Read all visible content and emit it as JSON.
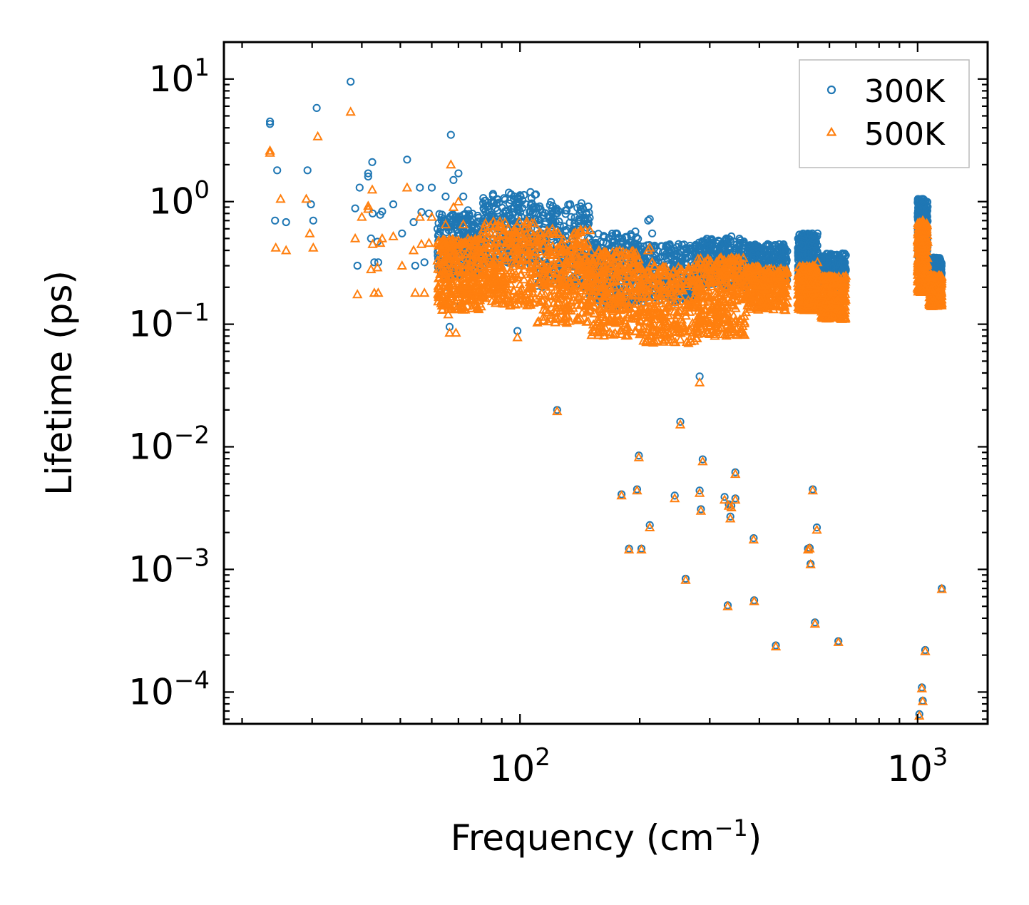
{
  "chart_data": {
    "type": "scatter",
    "title": "",
    "xlabel": "Frequency (cm",
    "xlabel_sup": "−1",
    "xlabel_tail": ")",
    "ylabel": "Lifetime (ps)",
    "xscale": "log",
    "yscale": "log",
    "xlim": [
      18,
      1500
    ],
    "ylim": [
      5.5e-05,
      20
    ],
    "x_ticks": [
      {
        "base": "10",
        "exp": "2",
        "value": 100
      },
      {
        "base": "10",
        "exp": "3",
        "value": 1000
      }
    ],
    "y_ticks": [
      {
        "base": "10",
        "exp": "1",
        "value": 10
      },
      {
        "base": "10",
        "exp": "0",
        "value": 1
      },
      {
        "base": "10",
        "exp": "−1",
        "value": 0.1
      },
      {
        "base": "10",
        "exp": "−2",
        "value": 0.01
      },
      {
        "base": "10",
        "exp": "−3",
        "value": 0.001
      },
      {
        "base": "10",
        "exp": "−4",
        "value": 0.0001
      }
    ],
    "legend": {
      "position": "top-right",
      "entries": [
        "300K",
        "500K"
      ]
    },
    "colors": {
      "300K": "#1f77b4",
      "500K": "#ff7f0e"
    },
    "bands": [
      {
        "x": [
          62,
          80
        ],
        "y300": [
          0.25,
          0.8
        ],
        "y500": [
          0.13,
          0.5
        ]
      },
      {
        "x": [
          80,
          110
        ],
        "y300": [
          0.3,
          1.2
        ],
        "y500": [
          0.14,
          0.7
        ]
      },
      {
        "x": [
          110,
          150
        ],
        "y300": [
          0.2,
          1.0
        ],
        "y500": [
          0.1,
          0.6
        ]
      },
      {
        "x": [
          150,
          200
        ],
        "y300": [
          0.14,
          0.55
        ],
        "y500": [
          0.08,
          0.4
        ]
      },
      {
        "x": [
          200,
          280
        ],
        "y300": [
          0.15,
          0.45
        ],
        "y500": [
          0.07,
          0.3
        ]
      },
      {
        "x": [
          280,
          370
        ],
        "y300": [
          0.2,
          0.5
        ],
        "y500": [
          0.08,
          0.35
        ]
      },
      {
        "x": [
          370,
          470
        ],
        "y300": [
          0.22,
          0.45
        ],
        "y500": [
          0.13,
          0.3
        ]
      },
      {
        "x": [
          500,
          560
        ],
        "y300": [
          0.25,
          0.55
        ],
        "y500": [
          0.13,
          0.3
        ]
      },
      {
        "x": [
          570,
          660
        ],
        "y300": [
          0.2,
          0.38
        ],
        "y500": [
          0.11,
          0.25
        ]
      },
      {
        "x": [
          1000,
          1060
        ],
        "y300": [
          0.3,
          1.05
        ],
        "y500": [
          0.18,
          0.7
        ]
      },
      {
        "x": [
          1070,
          1150
        ],
        "y300": [
          0.2,
          0.35
        ],
        "y500": [
          0.14,
          0.25
        ]
      }
    ],
    "series": [
      {
        "name": "300K",
        "marker": "circle",
        "points": [
          [
            23.5,
            4.5
          ],
          [
            23.5,
            4.3
          ],
          [
            24.5,
            1.8
          ],
          [
            24.2,
            0.7
          ],
          [
            25.8,
            0.68
          ],
          [
            29.2,
            1.8
          ],
          [
            29.8,
            0.95
          ],
          [
            30.2,
            0.7
          ],
          [
            30.8,
            5.8
          ],
          [
            37.5,
            9.5
          ],
          [
            38.5,
            0.88
          ],
          [
            39,
            0.3
          ],
          [
            39.5,
            1.3
          ],
          [
            41.5,
            1.7
          ],
          [
            41.5,
            1.6
          ],
          [
            42.5,
            2.1
          ],
          [
            42.2,
            0.5
          ],
          [
            42.6,
            0.8
          ],
          [
            43,
            0.32
          ],
          [
            43.8,
            0.47
          ],
          [
            44,
            0.32
          ],
          [
            44.5,
            0.78
          ],
          [
            45,
            0.83
          ],
          [
            48,
            0.95
          ],
          [
            50.5,
            0.55
          ],
          [
            52,
            2.2
          ],
          [
            54,
            0.68
          ],
          [
            54.5,
            0.3
          ],
          [
            56,
            1.3
          ],
          [
            56.5,
            0.82
          ],
          [
            57.5,
            0.32
          ],
          [
            59,
            0.8
          ],
          [
            60,
            1.3
          ],
          [
            62,
            0.6
          ],
          [
            65,
            1.1
          ],
          [
            66,
            0.2
          ],
          [
            67,
            3.5
          ],
          [
            68,
            1.5
          ],
          [
            69,
            0.14
          ],
          [
            70,
            1.7
          ],
          [
            71,
            0.6
          ],
          [
            72,
            1.1
          ],
          [
            74,
            0.85
          ],
          [
            66.5,
            0.095
          ],
          [
            98.5,
            0.088
          ],
          [
            124,
            0.02
          ],
          [
            180,
            0.0041
          ],
          [
            188,
            0.00148
          ],
          [
            197,
            0.0045
          ],
          [
            199,
            0.0085
          ],
          [
            202,
            0.00148
          ],
          [
            212,
            0.0023
          ],
          [
            245,
            0.004
          ],
          [
            253,
            0.016
          ],
          [
            261,
            0.00084
          ],
          [
            283,
            0.0375
          ],
          [
            283,
            0.0044
          ],
          [
            285,
            0.0031
          ],
          [
            288,
            0.0079
          ],
          [
            327,
            0.0039
          ],
          [
            333,
            0.00051
          ],
          [
            335,
            0.0034
          ],
          [
            338,
            0.0027
          ],
          [
            340,
            0.0033
          ],
          [
            348,
            0.0038
          ],
          [
            348,
            0.0062
          ],
          [
            387,
            0.0018
          ],
          [
            388,
            0.00056
          ],
          [
            440,
            0.00024
          ],
          [
            530,
            0.00148
          ],
          [
            535,
            0.0015
          ],
          [
            538,
            0.00111
          ],
          [
            545,
            0.0045
          ],
          [
            552,
            0.00037
          ],
          [
            558,
            0.0022
          ],
          [
            632,
            0.00026
          ],
          [
            1010,
            6.6e-05
          ],
          [
            1025,
            0.000109
          ],
          [
            1030,
            8.5e-05
          ],
          [
            1045,
            0.00022
          ],
          [
            1150,
            0.0007
          ],
          [
            120,
            0.52
          ],
          [
            130,
            0.48
          ],
          [
            175,
            0.55
          ],
          [
            195,
            0.57
          ],
          [
            210,
            0.7
          ],
          [
            212,
            0.72
          ],
          [
            215,
            0.55
          ],
          [
            330,
            0.5
          ],
          [
            340,
            0.52
          ],
          [
            545,
            0.5
          ],
          [
            560,
            0.55
          ],
          [
            650,
            0.37
          ],
          [
            1030,
            1.05
          ],
          [
            1028,
            0.95
          ]
        ]
      },
      {
        "name": "500K",
        "marker": "triangle",
        "points": [
          [
            23.5,
            2.6
          ],
          [
            23.5,
            2.5
          ],
          [
            24.3,
            0.42
          ],
          [
            25,
            1.05
          ],
          [
            25.8,
            0.4
          ],
          [
            29,
            1.05
          ],
          [
            29.6,
            0.55
          ],
          [
            30.2,
            0.42
          ],
          [
            31,
            3.4
          ],
          [
            37.5,
            5.4
          ],
          [
            38.5,
            0.5
          ],
          [
            39,
            0.175
          ],
          [
            40,
            0.75
          ],
          [
            41.5,
            0.92
          ],
          [
            41.5,
            0.87
          ],
          [
            42.5,
            1.25
          ],
          [
            42.2,
            0.28
          ],
          [
            42.6,
            0.45
          ],
          [
            43,
            0.18
          ],
          [
            43.8,
            0.29
          ],
          [
            44,
            0.18
          ],
          [
            44.5,
            0.46
          ],
          [
            45,
            0.5
          ],
          [
            48,
            0.52
          ],
          [
            50.5,
            0.3
          ],
          [
            52,
            1.3
          ],
          [
            54,
            0.4
          ],
          [
            54.5,
            0.18
          ],
          [
            56,
            0.75
          ],
          [
            56.5,
            0.45
          ],
          [
            57.5,
            0.18
          ],
          [
            59,
            0.46
          ],
          [
            60,
            0.75
          ],
          [
            62,
            0.33
          ],
          [
            65,
            0.65
          ],
          [
            66,
            0.12
          ],
          [
            67,
            2.0
          ],
          [
            68,
            0.9
          ],
          [
            69,
            0.085
          ],
          [
            70,
            1.0
          ],
          [
            71,
            0.33
          ],
          [
            72,
            0.65
          ],
          [
            74,
            0.5
          ],
          [
            66.5,
            0.085
          ],
          [
            98.5,
            0.078
          ],
          [
            124,
            0.0195
          ],
          [
            180,
            0.004
          ],
          [
            188,
            0.00145
          ],
          [
            197,
            0.0044
          ],
          [
            199,
            0.0082
          ],
          [
            202,
            0.00145
          ],
          [
            212,
            0.0022
          ],
          [
            245,
            0.0038
          ],
          [
            253,
            0.0152
          ],
          [
            261,
            0.00082
          ],
          [
            283,
            0.0335
          ],
          [
            283,
            0.0042
          ],
          [
            285,
            0.003
          ],
          [
            288,
            0.0076
          ],
          [
            327,
            0.0037
          ],
          [
            333,
            0.0005
          ],
          [
            335,
            0.0033
          ],
          [
            338,
            0.0026
          ],
          [
            340,
            0.0032
          ],
          [
            348,
            0.0037
          ],
          [
            348,
            0.006
          ],
          [
            387,
            0.00175
          ],
          [
            388,
            0.00055
          ],
          [
            440,
            0.000235
          ],
          [
            530,
            0.00145
          ],
          [
            535,
            0.00148
          ],
          [
            538,
            0.0011
          ],
          [
            545,
            0.0044
          ],
          [
            552,
            0.00036
          ],
          [
            558,
            0.0021
          ],
          [
            632,
            0.000255
          ],
          [
            1010,
            6.4e-05
          ],
          [
            1025,
            0.000107
          ],
          [
            1030,
            8.4e-05
          ],
          [
            1045,
            0.000215
          ],
          [
            1150,
            0.00069
          ],
          [
            120,
            0.3
          ],
          [
            130,
            0.28
          ],
          [
            175,
            0.35
          ],
          [
            195,
            0.36
          ],
          [
            210,
            0.4
          ],
          [
            212,
            0.42
          ],
          [
            215,
            0.32
          ],
          [
            330,
            0.3
          ],
          [
            340,
            0.35
          ],
          [
            545,
            0.3
          ],
          [
            560,
            0.32
          ],
          [
            650,
            0.22
          ],
          [
            1030,
            0.7
          ],
          [
            1028,
            0.62
          ]
        ]
      }
    ]
  }
}
